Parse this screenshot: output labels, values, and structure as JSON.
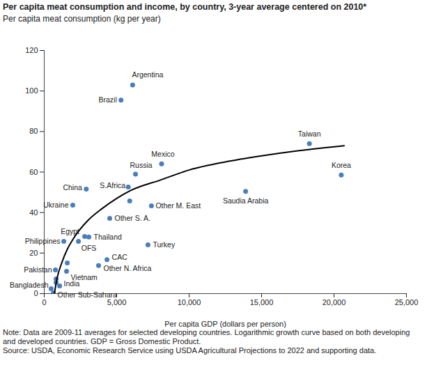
{
  "chart_data": {
    "type": "scatter",
    "title": "Per capita meat consumption and income, by country, 3-year average centered on 2010*",
    "y_label": "Per capita meat consumption (kg per year)",
    "x_label": "Per capita GDP (dollars per person)",
    "note": "Note: Data are 2009-11 averages for selected developing countries. Logarithmic growth curve based on both developing and developed countries. GDP = Gross Domestic Product.",
    "source": "Source: USDA, Economic Research Service using USDA Agricultural Projections to 2022 and supporting data.",
    "xlim": [
      0,
      25000
    ],
    "xticks": [
      0,
      {
        "value": 5000,
        "label": "5,000"
      },
      {
        "value": 10000,
        "label": "10,000"
      },
      {
        "value": 15000,
        "label": "15,000"
      },
      {
        "value": 20000,
        "label": "20,000"
      },
      {
        "value": 25000,
        "label": "25,000"
      }
    ],
    "ylim": [
      0,
      120
    ],
    "yticks": [
      0,
      20,
      40,
      60,
      80,
      100,
      120
    ],
    "grid": false,
    "series": [
      {
        "type": "scatter",
        "color": "#4a7ebb",
        "marker": "circle",
        "labels": [
          "Argentina",
          "Brazil",
          "Taiwan",
          "Mexico",
          "Korea",
          "Russia",
          "S.Africa",
          "China",
          "Saudia Arabia",
          "Other M. East",
          null,
          "Ukraine",
          "Other S. A.",
          "Philippines",
          "Egypt",
          "OFS",
          "Thailand",
          "Turkey",
          "CAC",
          "Other N. Africa",
          null,
          "Vietnam",
          "Pakistan",
          null,
          null,
          "India",
          "Bangladesh",
          "Other Sub-Sahara"
        ],
        "x": [
          6100,
          5300,
          18300,
          8100,
          20500,
          6300,
          5800,
          2900,
          13900,
          7400,
          5900,
          1970,
          4520,
          1350,
          2360,
          2790,
          3080,
          7160,
          4330,
          3750,
          1590,
          1540,
          770,
          820,
          820,
          1060,
          480,
          630
        ],
        "values": [
          103,
          95.5,
          74,
          64,
          58.5,
          59,
          52.6,
          51.6,
          50.5,
          43.3,
          45.7,
          43.7,
          37.1,
          25.8,
          25.8,
          28.2,
          27.9,
          24.1,
          16.8,
          13.8,
          15.1,
          11,
          11.7,
          7.2,
          5.5,
          3.8,
          2.4,
          0.3
        ]
      },
      {
        "type": "line",
        "color": "#000000",
        "line_style": "solid",
        "x": [
          700,
          900,
          1200,
          1600,
          2000,
          3000,
          4000,
          5000,
          6000,
          8000,
          10000,
          12500,
          15000,
          17500,
          20000,
          20700
        ],
        "values": [
          0,
          8,
          15,
          22,
          27,
          36,
          42,
          47,
          51,
          56,
          61,
          65,
          68,
          70.5,
          72.5,
          73
        ]
      }
    ]
  }
}
